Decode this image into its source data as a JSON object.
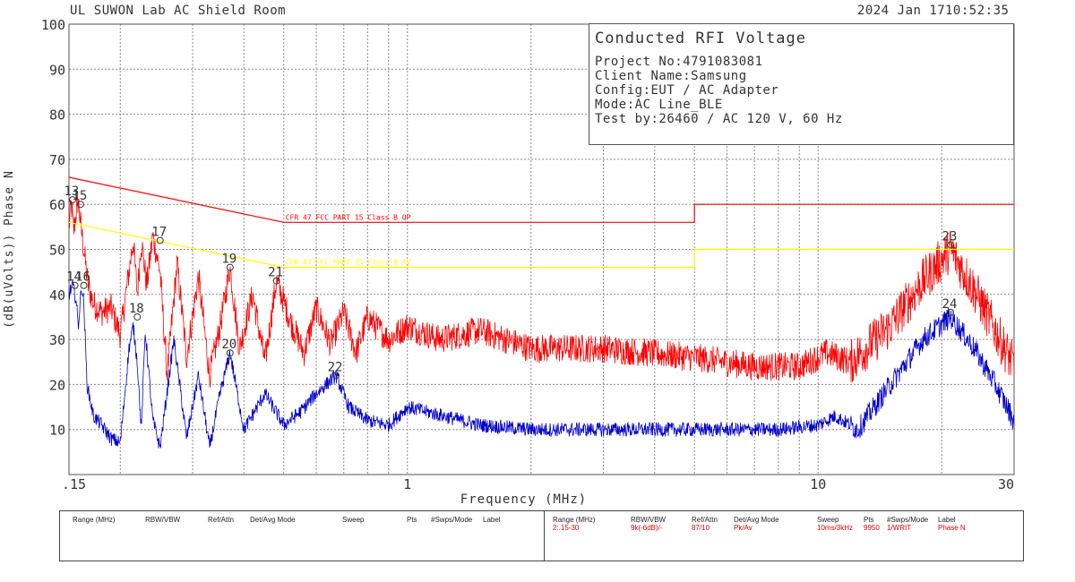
{
  "header": {
    "room": "UL SUWON Lab AC Shield Room",
    "date": "2024 Jan 17",
    "time": "10:52:35"
  },
  "info": {
    "title": "Conducted RFI Voltage",
    "lines": [
      "Project No:4791083081",
      "Client Name:Samsung",
      "Config:EUT / AC Adapter",
      "Mode:AC Line_BLE",
      "Test by:26460 / AC 120 V, 60 Hz"
    ]
  },
  "colors": {
    "qp": "#ff0000",
    "avg": "#0000cc",
    "avg_limit": "#ffff00",
    "grid": "#888888"
  },
  "chart_data": {
    "type": "line",
    "xlabel": "Frequency (MHz)",
    "ylabel": "(dB(uVolts)) Phase N",
    "xscale": "log",
    "xlim": [
      0.15,
      30
    ],
    "ylim": [
      0,
      100
    ],
    "x_ticks": [
      ".15",
      "1",
      "10",
      "30"
    ],
    "y_ticks": [
      10,
      20,
      30,
      40,
      50,
      60,
      70,
      80,
      90,
      100
    ],
    "grid": true,
    "limits": [
      {
        "name": "CFR 47 FCC PART 15 Class B QP",
        "points": [
          [
            0.15,
            66
          ],
          [
            0.5,
            56
          ],
          [
            5,
            56
          ],
          [
            5,
            60
          ],
          [
            30,
            60
          ]
        ]
      },
      {
        "name": "CFR 47 FCC PART 15 Class B AV",
        "points": [
          [
            0.15,
            56
          ],
          [
            0.5,
            46
          ],
          [
            5,
            46
          ],
          [
            5,
            50
          ],
          [
            30,
            50
          ]
        ]
      }
    ],
    "markers": [
      {
        "label": "13",
        "x": 0.153,
        "y": 61
      },
      {
        "label": "14",
        "x": 0.155,
        "y": 42
      },
      {
        "label": "15",
        "x": 0.16,
        "y": 60
      },
      {
        "label": "16",
        "x": 0.163,
        "y": 42
      },
      {
        "label": "17",
        "x": 0.25,
        "y": 52
      },
      {
        "label": "18",
        "x": 0.22,
        "y": 35
      },
      {
        "label": "19",
        "x": 0.37,
        "y": 46
      },
      {
        "label": "20",
        "x": 0.37,
        "y": 27
      },
      {
        "label": "21",
        "x": 0.48,
        "y": 43
      },
      {
        "label": "22",
        "x": 0.67,
        "y": 22
      },
      {
        "label": "23",
        "x": 21.0,
        "y": 51
      },
      {
        "label": "24",
        "x": 21.0,
        "y": 36
      }
    ],
    "series": [
      {
        "name": "Pk",
        "trace": [
          [
            0.15,
            55
          ],
          [
            0.152,
            60
          ],
          [
            0.154,
            54
          ],
          [
            0.156,
            58
          ],
          [
            0.158,
            61
          ],
          [
            0.16,
            56
          ],
          [
            0.163,
            50
          ],
          [
            0.167,
            42
          ],
          [
            0.172,
            38
          ],
          [
            0.18,
            36
          ],
          [
            0.19,
            37
          ],
          [
            0.2,
            31
          ],
          [
            0.21,
            45
          ],
          [
            0.215,
            52
          ],
          [
            0.22,
            40
          ],
          [
            0.225,
            52
          ],
          [
            0.232,
            42
          ],
          [
            0.24,
            53
          ],
          [
            0.25,
            45
          ],
          [
            0.26,
            22
          ],
          [
            0.275,
            47
          ],
          [
            0.29,
            26
          ],
          [
            0.31,
            44
          ],
          [
            0.33,
            22
          ],
          [
            0.35,
            33
          ],
          [
            0.37,
            46
          ],
          [
            0.39,
            28
          ],
          [
            0.42,
            40
          ],
          [
            0.45,
            25
          ],
          [
            0.48,
            43
          ],
          [
            0.52,
            34
          ],
          [
            0.56,
            27
          ],
          [
            0.6,
            37
          ],
          [
            0.65,
            29
          ],
          [
            0.7,
            36
          ],
          [
            0.75,
            27
          ],
          [
            0.8,
            35
          ],
          [
            0.9,
            30
          ],
          [
            1.0,
            33
          ],
          [
            1.2,
            30
          ],
          [
            1.5,
            32
          ],
          [
            2.0,
            28
          ],
          [
            3.0,
            28
          ],
          [
            5.0,
            26
          ],
          [
            7.0,
            24
          ],
          [
            9.0,
            24
          ],
          [
            10.5,
            27
          ],
          [
            12.0,
            25
          ],
          [
            15.0,
            33
          ],
          [
            18.0,
            43
          ],
          [
            21.0,
            50
          ],
          [
            24.0,
            41
          ],
          [
            27.0,
            32
          ],
          [
            30.0,
            24
          ]
        ]
      },
      {
        "name": "Av",
        "trace": [
          [
            0.15,
            40
          ],
          [
            0.153,
            42
          ],
          [
            0.156,
            39
          ],
          [
            0.158,
            33
          ],
          [
            0.161,
            42
          ],
          [
            0.163,
            38
          ],
          [
            0.166,
            20
          ],
          [
            0.172,
            13
          ],
          [
            0.18,
            11
          ],
          [
            0.19,
            8
          ],
          [
            0.2,
            7
          ],
          [
            0.21,
            28
          ],
          [
            0.215,
            33
          ],
          [
            0.22,
            25
          ],
          [
            0.225,
            10
          ],
          [
            0.23,
            32
          ],
          [
            0.24,
            12
          ],
          [
            0.25,
            6
          ],
          [
            0.27,
            30
          ],
          [
            0.29,
            8
          ],
          [
            0.31,
            22
          ],
          [
            0.33,
            6
          ],
          [
            0.35,
            18
          ],
          [
            0.37,
            27
          ],
          [
            0.4,
            10
          ],
          [
            0.45,
            18
          ],
          [
            0.5,
            11
          ],
          [
            0.55,
            14
          ],
          [
            0.6,
            18
          ],
          [
            0.67,
            22
          ],
          [
            0.72,
            15
          ],
          [
            0.8,
            12
          ],
          [
            0.9,
            11
          ],
          [
            1.0,
            15
          ],
          [
            1.5,
            11
          ],
          [
            2.0,
            10
          ],
          [
            5.0,
            10
          ],
          [
            8.0,
            10
          ],
          [
            10.0,
            11
          ],
          [
            11.0,
            13
          ],
          [
            12.5,
            10
          ],
          [
            15.0,
            20
          ],
          [
            18.0,
            30
          ],
          [
            21.0,
            35
          ],
          [
            24.0,
            28
          ],
          [
            27.0,
            20
          ],
          [
            30.0,
            12
          ]
        ]
      }
    ]
  },
  "settings": {
    "headers": [
      "Range (MHz)",
      "RBW/VBW",
      "Ref/Attn",
      "Det/Avg Mode",
      "Sweep",
      "Pts",
      "#Swps/Mode",
      "Label"
    ],
    "row": [
      "2:.15-30",
      "9k(-6dB)/-",
      "87/10",
      "Pk/Av",
      "10ms/3kHz",
      "9950",
      "1/WRIT",
      "Phase N"
    ]
  }
}
